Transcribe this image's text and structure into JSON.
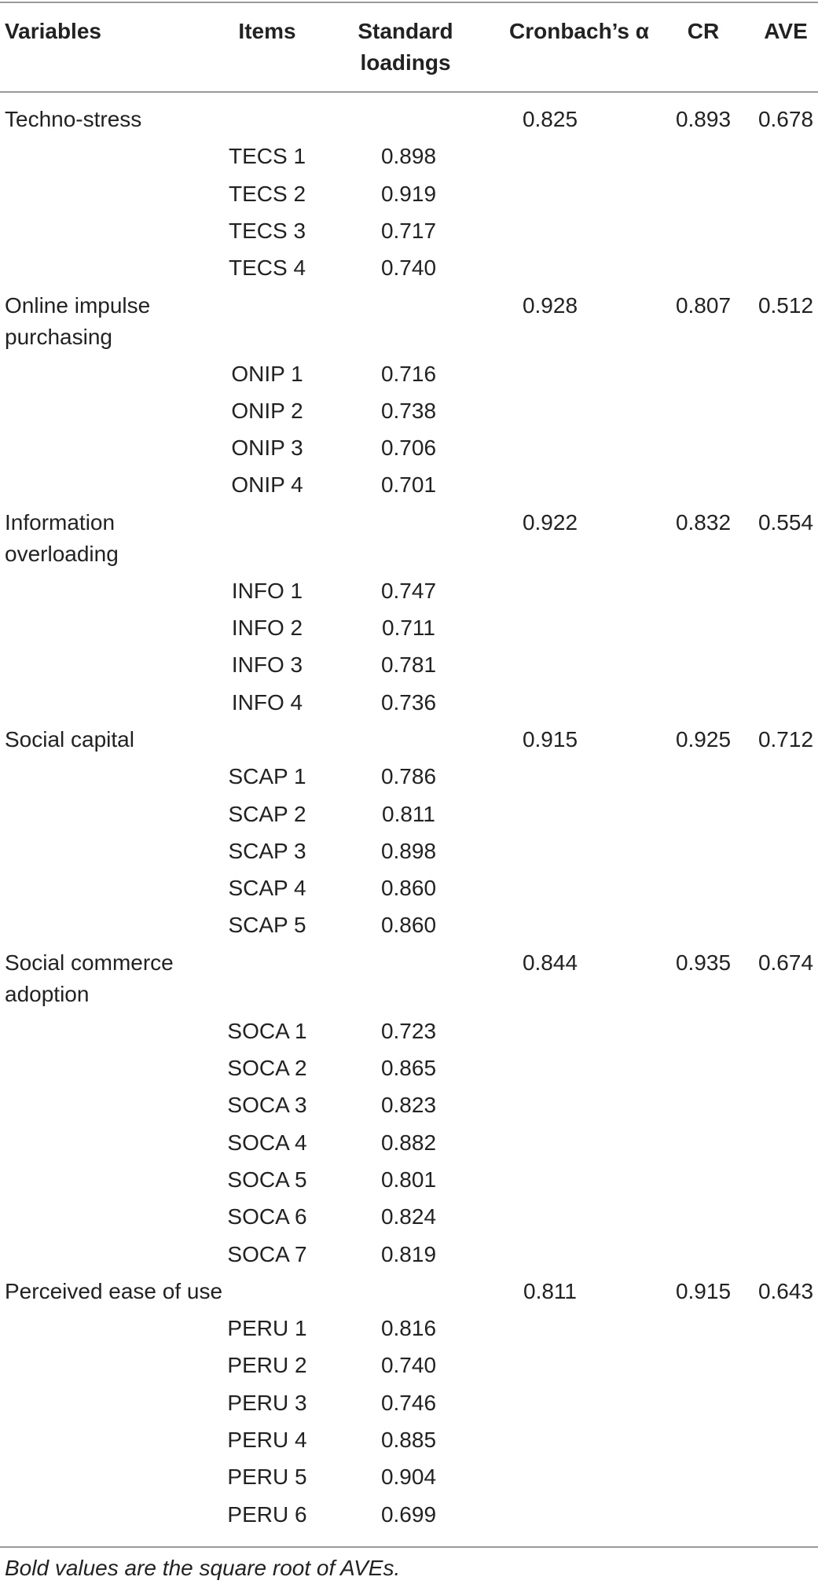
{
  "table": {
    "headers": {
      "variables": "Variables",
      "items": "Items",
      "loadings_line1": "Standard",
      "loadings_line2": "loadings",
      "alpha": "Cronbach’s α",
      "cr": "CR",
      "ave": "AVE"
    },
    "groups": [
      {
        "variable": [
          "Techno-stress"
        ],
        "alpha": "0.825",
        "cr": "0.893",
        "ave": "0.678",
        "rows": [
          {
            "item": "TECS 1",
            "loading": "0.898"
          },
          {
            "item": "TECS 2",
            "loading": "0.919"
          },
          {
            "item": "TECS 3",
            "loading": "0.717"
          },
          {
            "item": "TECS 4",
            "loading": "0.740"
          }
        ]
      },
      {
        "variable": [
          "Online impulse",
          "purchasing"
        ],
        "alpha": "0.928",
        "cr": "0.807",
        "ave": "0.512",
        "rows": [
          {
            "item": "ONIP 1",
            "loading": "0.716"
          },
          {
            "item": "ONIP 2",
            "loading": "0.738"
          },
          {
            "item": "ONIP 3",
            "loading": "0.706"
          },
          {
            "item": "ONIP 4",
            "loading": "0.701"
          }
        ]
      },
      {
        "variable": [
          "Information",
          "overloading"
        ],
        "alpha": "0.922",
        "cr": "0.832",
        "ave": "0.554",
        "rows": [
          {
            "item": "INFO 1",
            "loading": "0.747"
          },
          {
            "item": "INFO 2",
            "loading": "0.711"
          },
          {
            "item": "INFO 3",
            "loading": "0.781"
          },
          {
            "item": "INFO 4",
            "loading": "0.736"
          }
        ]
      },
      {
        "variable": [
          "Social capital"
        ],
        "alpha": "0.915",
        "cr": "0.925",
        "ave": "0.712",
        "rows": [
          {
            "item": "SCAP 1",
            "loading": "0.786"
          },
          {
            "item": "SCAP 2",
            "loading": "0.811"
          },
          {
            "item": "SCAP 3",
            "loading": "0.898"
          },
          {
            "item": "SCAP 4",
            "loading": "0.860"
          },
          {
            "item": "SCAP 5",
            "loading": "0.860"
          }
        ]
      },
      {
        "variable": [
          "Social commerce",
          "adoption"
        ],
        "alpha": "0.844",
        "cr": "0.935",
        "ave": "0.674",
        "rows": [
          {
            "item": "SOCA 1",
            "loading": "0.723"
          },
          {
            "item": "SOCA 2",
            "loading": "0.865"
          },
          {
            "item": "SOCA 3",
            "loading": "0.823"
          },
          {
            "item": "SOCA 4",
            "loading": "0.882"
          },
          {
            "item": "SOCA 5",
            "loading": "0.801"
          },
          {
            "item": "SOCA 6",
            "loading": "0.824"
          },
          {
            "item": "SOCA 7",
            "loading": "0.819"
          }
        ]
      },
      {
        "variable": [
          "Perceived ease of use"
        ],
        "alpha": "0.811",
        "cr": "0.915",
        "ave": "0.643",
        "rows": [
          {
            "item": "PERU 1",
            "loading": "0.816"
          },
          {
            "item": "PERU 2",
            "loading": "0.740"
          },
          {
            "item": "PERU 3",
            "loading": "0.746"
          },
          {
            "item": "PERU 4",
            "loading": "0.885"
          },
          {
            "item": "PERU 5",
            "loading": "0.904"
          },
          {
            "item": "PERU 6",
            "loading": "0.699"
          }
        ]
      }
    ],
    "footnote": "Bold values are the square root of AVEs."
  }
}
